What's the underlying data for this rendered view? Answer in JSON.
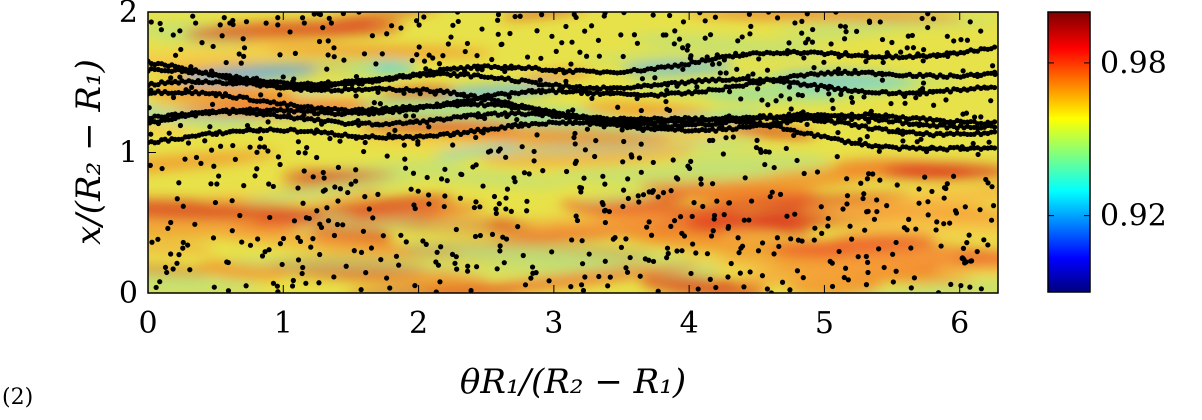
{
  "panel_label": "(2)",
  "chart_data": {
    "type": "heatmap",
    "title": "",
    "xlabel": "θR₁/(R₂ − R₁)",
    "ylabel": "x/(R₂ − R₁)",
    "xlim": [
      0,
      6.283
    ],
    "ylim": [
      0,
      2
    ],
    "xticks": [
      "0",
      "1",
      "2",
      "3",
      "4",
      "5",
      "6"
    ],
    "yticks": [
      "0",
      "1",
      "2"
    ],
    "colorbar": {
      "range": [
        0.89,
        1.0
      ],
      "ticks": [
        "0.92",
        "0.98"
      ],
      "tick_values": [
        0.92,
        0.98
      ],
      "colormap": "jet"
    },
    "overlay": {
      "type": "scatter",
      "color": "#000000",
      "description_level_fields": {
        "dense_streaks_y_band": [
          1.1,
          1.8
        ],
        "sparse_points_y_band": [
          0,
          2
        ]
      }
    }
  }
}
